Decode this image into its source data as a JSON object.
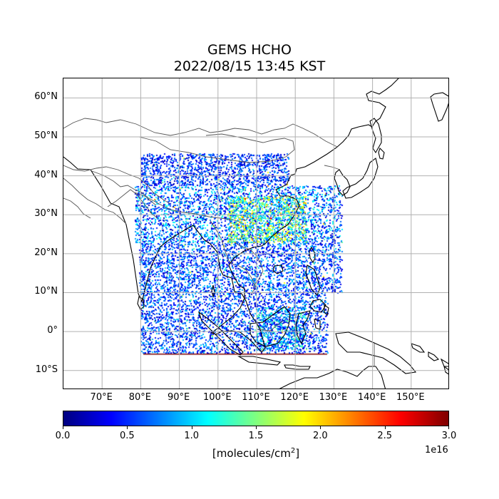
{
  "title": "GEMS HCHO",
  "datetime": "2022/08/15 13:45 KST",
  "map": {
    "lon_range": [
      60,
      160
    ],
    "lat_range": [
      -15,
      65
    ],
    "lat_ticks": [
      "60°N",
      "50°N",
      "40°N",
      "30°N",
      "20°N",
      "10°N",
      "0°",
      "10°S"
    ],
    "lat_tick_values": [
      60,
      50,
      40,
      30,
      20,
      10,
      0,
      -10
    ],
    "lon_ticks": [
      "70°E",
      "80°E",
      "90°E",
      "100°E",
      "110°E",
      "120°E",
      "130°E",
      "140°E",
      "150°E"
    ],
    "lon_tick_values": [
      70,
      80,
      90,
      100,
      110,
      120,
      130,
      140,
      150
    ],
    "grid": true,
    "coastline_color": "#000000",
    "border_color": "#555555"
  },
  "colorbar": {
    "colormap": "jet",
    "min": 0.0,
    "max": 3.0,
    "tick_labels": [
      "0.0",
      "0.5",
      "1.0",
      "1.5",
      "2.0",
      "2.5",
      "3.0"
    ],
    "tick_values": [
      0.0,
      0.5,
      1.0,
      1.5,
      2.0,
      2.5,
      3.0
    ],
    "exponent": "1e16",
    "unit": "[molecules/cm",
    "unit_superscript": "2",
    "unit_suffix": "]"
  }
}
